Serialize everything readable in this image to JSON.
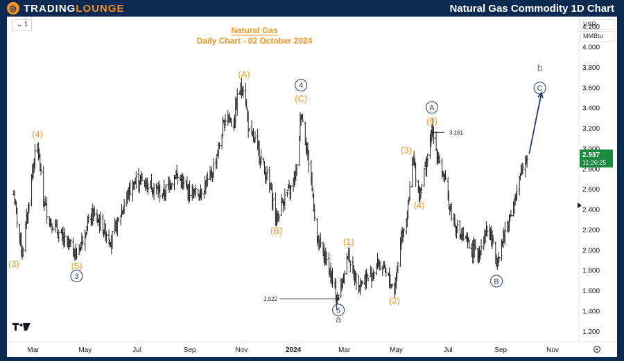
{
  "header": {
    "brand_left": "TRADING",
    "brand_right": "LOUNGE",
    "title": "Natural Gas Commodity 1D Chart"
  },
  "toolbar": {
    "interval": "1",
    "currency": "USD",
    "unit": "MMBtu",
    "settings_icon": "gear-icon",
    "logo_icon": "tv-logo-icon"
  },
  "colors": {
    "orange": "#f7931e",
    "navy": "#1f3a6e",
    "candle": "#1c1c1c",
    "price_badge": "#1a8a3f"
  },
  "chart_data": {
    "type": "ohlc",
    "title": "Natural Gas",
    "subtitle": "Daily Chart - 02 October 2024",
    "x_tick_labels": [
      "Mar",
      "May",
      "Jul",
      "Sep",
      "Nov",
      "2024",
      "Mar",
      "May",
      "Jul",
      "Sep",
      "Nov"
    ],
    "y_tick_labels": [
      "1.200",
      "1.400",
      "1.600",
      "1.800",
      "2.000",
      "2.200",
      "2.400",
      "2.600",
      "2.800",
      "3.000",
      "3.200",
      "3.400",
      "3.600",
      "3.800",
      "4.000",
      "4.200"
    ],
    "ylim": [
      1.1,
      4.3
    ],
    "current_price": "2.937",
    "countdown": "11:26:25",
    "annotations": [
      {
        "label": "1.522",
        "kind": "low-marker"
      },
      {
        "label": "3.161",
        "kind": "high-marker"
      }
    ],
    "path": [
      [
        "2023-02-06",
        2.55
      ],
      [
        "2023-02-10",
        2.3
      ],
      [
        "2023-02-16",
        1.97
      ],
      [
        "2023-02-22",
        2.35
      ],
      [
        "2023-03-01",
        2.85
      ],
      [
        "2023-03-06",
        3.03
      ],
      [
        "2023-03-13",
        2.5
      ],
      [
        "2023-03-20",
        2.3
      ],
      [
        "2023-03-28",
        2.2
      ],
      [
        "2023-04-05",
        2.1
      ],
      [
        "2023-04-13",
        2.05
      ],
      [
        "2023-04-21",
        1.95
      ],
      [
        "2023-05-01",
        2.2
      ],
      [
        "2023-05-10",
        2.35
      ],
      [
        "2023-05-20",
        2.25
      ],
      [
        "2023-05-31",
        2.1
      ],
      [
        "2023-06-10",
        2.3
      ],
      [
        "2023-06-20",
        2.55
      ],
      [
        "2023-07-01",
        2.7
      ],
      [
        "2023-07-15",
        2.65
      ],
      [
        "2023-08-01",
        2.55
      ],
      [
        "2023-08-15",
        2.75
      ],
      [
        "2023-08-28",
        2.6
      ],
      [
        "2023-09-10",
        2.55
      ],
      [
        "2023-09-25",
        2.7
      ],
      [
        "2023-10-05",
        3.0
      ],
      [
        "2023-10-15",
        3.38
      ],
      [
        "2023-10-22",
        3.2
      ],
      [
        "2023-10-28",
        3.55
      ],
      [
        "2023-11-04",
        3.62
      ],
      [
        "2023-11-10",
        3.15
      ],
      [
        "2023-11-18",
        3.05
      ],
      [
        "2023-11-28",
        2.8
      ],
      [
        "2023-12-05",
        2.6
      ],
      [
        "2023-12-12",
        2.3
      ],
      [
        "2023-12-20",
        2.5
      ],
      [
        "2023-12-29",
        2.6
      ],
      [
        "2024-01-05",
        2.8
      ],
      [
        "2024-01-10",
        3.38
      ],
      [
        "2024-01-15",
        3.1
      ],
      [
        "2024-01-22",
        2.7
      ],
      [
        "2024-01-29",
        2.1
      ],
      [
        "2024-02-05",
        1.98
      ],
      [
        "2024-02-12",
        1.82
      ],
      [
        "2024-02-20",
        1.55
      ],
      [
        "2024-02-23",
        1.52
      ],
      [
        "2024-03-01",
        1.8
      ],
      [
        "2024-03-06",
        1.97
      ],
      [
        "2024-03-12",
        1.75
      ],
      [
        "2024-03-20",
        1.68
      ],
      [
        "2024-04-01",
        1.75
      ],
      [
        "2024-04-10",
        1.88
      ],
      [
        "2024-04-18",
        1.78
      ],
      [
        "2024-04-29",
        1.61
      ],
      [
        "2024-05-07",
        2.15
      ],
      [
        "2024-05-14",
        2.35
      ],
      [
        "2024-05-21",
        2.9
      ],
      [
        "2024-05-28",
        2.55
      ],
      [
        "2024-06-05",
        2.85
      ],
      [
        "2024-06-12",
        3.161
      ],
      [
        "2024-06-20",
        2.9
      ],
      [
        "2024-06-28",
        2.65
      ],
      [
        "2024-07-05",
        2.35
      ],
      [
        "2024-07-15",
        2.15
      ],
      [
        "2024-07-25",
        2.05
      ],
      [
        "2024-08-05",
        1.95
      ],
      [
        "2024-08-15",
        2.2
      ],
      [
        "2024-08-20",
        2.15
      ],
      [
        "2024-08-27",
        1.9
      ],
      [
        "2024-09-05",
        2.15
      ],
      [
        "2024-09-12",
        2.35
      ],
      [
        "2024-09-20",
        2.55
      ],
      [
        "2024-09-26",
        2.8
      ],
      [
        "2024-10-02",
        2.937
      ]
    ],
    "wave_labels": [
      {
        "text": "(3)",
        "date": "2023-02-06",
        "price": 1.97,
        "color": "orange",
        "pos": "below"
      },
      {
        "text": "(4)",
        "date": "2023-03-06",
        "price": 3.03,
        "color": "orange",
        "pos": "above"
      },
      {
        "text": "(5)",
        "date": "2023-04-21",
        "price": 1.95,
        "color": "orange",
        "pos": "below"
      },
      {
        "text": "3",
        "date": "2023-04-21",
        "price": 1.95,
        "color": "navy",
        "pos": "below2",
        "circled": true
      },
      {
        "text": "(A)",
        "date": "2023-11-04",
        "price": 3.62,
        "color": "orange",
        "pos": "above"
      },
      {
        "text": "(B)",
        "date": "2023-12-12",
        "price": 2.3,
        "color": "orange",
        "pos": "below"
      },
      {
        "text": "4",
        "date": "2024-01-10",
        "price": 3.38,
        "color": "navy",
        "pos": "above2",
        "circled": true
      },
      {
        "text": "(C)",
        "date": "2024-01-10",
        "price": 3.38,
        "color": "orange",
        "pos": "above"
      },
      {
        "text": "5",
        "date": "2024-02-23",
        "price": 1.52,
        "color": "navy",
        "pos": "below",
        "circled": true
      },
      {
        "text": "a",
        "date": "2024-02-23",
        "price": 1.52,
        "color": "gray",
        "pos": "below2"
      },
      {
        "text": "(1)",
        "date": "2024-03-06",
        "price": 1.97,
        "color": "orange",
        "pos": "above"
      },
      {
        "text": "(2)",
        "date": "2024-04-29",
        "price": 1.61,
        "color": "orange",
        "pos": "below"
      },
      {
        "text": "(3)",
        "date": "2024-05-21",
        "price": 2.9,
        "color": "orange",
        "pos": "leftabove"
      },
      {
        "text": "(4)",
        "date": "2024-05-28",
        "price": 2.55,
        "color": "orange",
        "pos": "below"
      },
      {
        "text": "(5)",
        "date": "2024-06-12",
        "price": 3.161,
        "color": "orange",
        "pos": "above"
      },
      {
        "text": "A",
        "date": "2024-06-12",
        "price": 3.161,
        "color": "navy",
        "pos": "above2",
        "circled": true
      },
      {
        "text": "B",
        "date": "2024-08-27",
        "price": 1.9,
        "color": "navy",
        "pos": "below2",
        "circled": true
      },
      {
        "text": "C",
        "date": "2024-10-17",
        "price": 3.57,
        "color": "navy",
        "pos": "center",
        "circled": true
      },
      {
        "text": "b",
        "date": "2024-10-17",
        "price": 3.57,
        "color": "gray",
        "pos": "above2"
      }
    ],
    "projection_arrow": {
      "from": [
        "2024-10-02",
        2.95
      ],
      "to": [
        "2024-10-14",
        3.55
      ]
    }
  }
}
